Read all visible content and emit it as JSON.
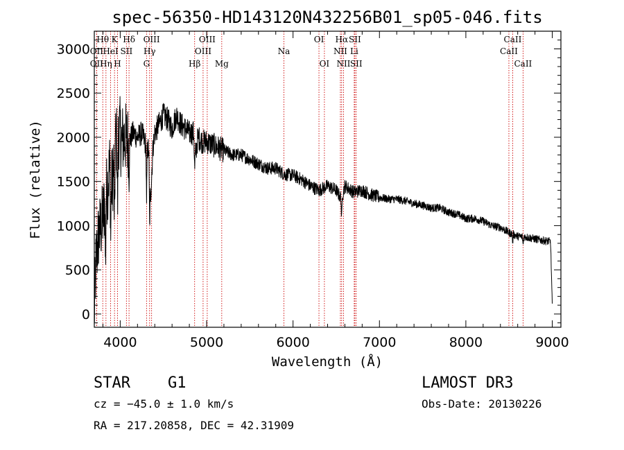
{
  "chart_data": {
    "type": "line",
    "title": "spec-56350-HD143120N432256B01_sp05-046.fits",
    "xlabel": "Wavelength (Å)",
    "ylabel": "Flux (relative)",
    "xlim": [
      3700,
      9100
    ],
    "ylim": [
      -150,
      3200
    ],
    "xticks": [
      4000,
      5000,
      6000,
      7000,
      8000,
      9000
    ],
    "yticks": [
      0,
      500,
      1000,
      1500,
      2000,
      2500,
      3000
    ],
    "spectrum_envelope": {
      "x": [
        3700,
        3720,
        3750,
        3780,
        3800,
        3830,
        3860,
        3880,
        3900,
        3930,
        3950,
        3970,
        3990,
        4010,
        4050,
        4100,
        4150,
        4200,
        4250,
        4300,
        4330,
        4350,
        4380,
        4400,
        4450,
        4500,
        4550,
        4600,
        4650,
        4700,
        4750,
        4800,
        4850,
        4870,
        4900,
        4950,
        5000,
        5100,
        5200,
        5300,
        5400,
        5500,
        5600,
        5700,
        5800,
        5900,
        6000,
        6100,
        6200,
        6300,
        6400,
        6500,
        6560,
        6600,
        6700,
        6800,
        6900,
        7000,
        7100,
        7200,
        7300,
        7400,
        7500,
        7600,
        7700,
        7800,
        7900,
        8000,
        8100,
        8200,
        8300,
        8400,
        8500,
        8600,
        8700,
        8800,
        8900,
        8980,
        9000
      ],
      "y": [
        0,
        600,
        900,
        1000,
        1100,
        1300,
        1500,
        1700,
        1450,
        1700,
        2000,
        1900,
        2100,
        1950,
        2000,
        1950,
        2050,
        2000,
        2050,
        1900,
        1850,
        1300,
        1900,
        2050,
        2150,
        2250,
        2200,
        2100,
        2250,
        2150,
        2100,
        2050,
        2050,
        1800,
        2000,
        1950,
        1950,
        1900,
        1850,
        1800,
        1800,
        1750,
        1700,
        1650,
        1650,
        1580,
        1570,
        1520,
        1450,
        1400,
        1450,
        1400,
        1300,
        1450,
        1380,
        1400,
        1350,
        1320,
        1300,
        1300,
        1280,
        1250,
        1230,
        1200,
        1200,
        1150,
        1130,
        1080,
        1080,
        1050,
        1000,
        980,
        920,
        880,
        870,
        850,
        830,
        820,
        100
      ]
    },
    "spectral_lines": [
      {
        "label": "Hθ",
        "wavelength": 3798,
        "row": 1
      },
      {
        "label": "OII",
        "wavelength": 3727,
        "row": 2
      },
      {
        "label": "OII",
        "wavelength": 3727,
        "row": 3
      },
      {
        "label": "HeI",
        "wavelength": 3889,
        "row": 2
      },
      {
        "label": "Hη",
        "wavelength": 3835,
        "row": 3
      },
      {
        "label": "K",
        "wavelength": 3934,
        "row": 1
      },
      {
        "label": "H",
        "wavelength": 3969,
        "row": 3
      },
      {
        "label": "Hδ",
        "wavelength": 4102,
        "row": 1
      },
      {
        "label": "SII",
        "wavelength": 4072,
        "row": 2
      },
      {
        "label": "OIII",
        "wavelength": 4363,
        "row": 1
      },
      {
        "label": "Hγ",
        "wavelength": 4340,
        "row": 2
      },
      {
        "label": "G",
        "wavelength": 4305,
        "row": 3
      },
      {
        "label": "Hβ",
        "wavelength": 4861,
        "row": 3
      },
      {
        "label": "OIII",
        "wavelength": 5007,
        "row": 1
      },
      {
        "label": "OIII",
        "wavelength": 4959,
        "row": 2
      },
      {
        "label": "Mg",
        "wavelength": 5175,
        "row": 3
      },
      {
        "label": "Na",
        "wavelength": 5894,
        "row": 2
      },
      {
        "label": "OI",
        "wavelength": 6300,
        "row": 1
      },
      {
        "label": "OI",
        "wavelength": 6363,
        "row": 3
      },
      {
        "label": "Hα",
        "wavelength": 6563,
        "row": 1
      },
      {
        "label": "SII",
        "wavelength": 6716,
        "row": 1
      },
      {
        "label": "NII",
        "wavelength": 6548,
        "row": 2
      },
      {
        "label": "Li",
        "wavelength": 6708,
        "row": 2
      },
      {
        "label": "NII",
        "wavelength": 6584,
        "row": 3
      },
      {
        "label": "SII",
        "wavelength": 6731,
        "row": 3
      },
      {
        "label": "CaII",
        "wavelength": 8542,
        "row": 1
      },
      {
        "label": "CaII",
        "wavelength": 8498,
        "row": 2
      },
      {
        "label": "CaII",
        "wavelength": 8662,
        "row": 3
      }
    ]
  },
  "footer": {
    "object_class": "STAR",
    "subclass": "G1",
    "survey": "LAMOST DR3",
    "cz": "cz = −45.0 ± 1.0 km/s",
    "obs_date": "Obs-Date: 20130226",
    "coords": "RA = 217.20858, DEC =  42.31909"
  },
  "colors": {
    "line_marker": "#cc0000",
    "spectrum": "#000000"
  }
}
